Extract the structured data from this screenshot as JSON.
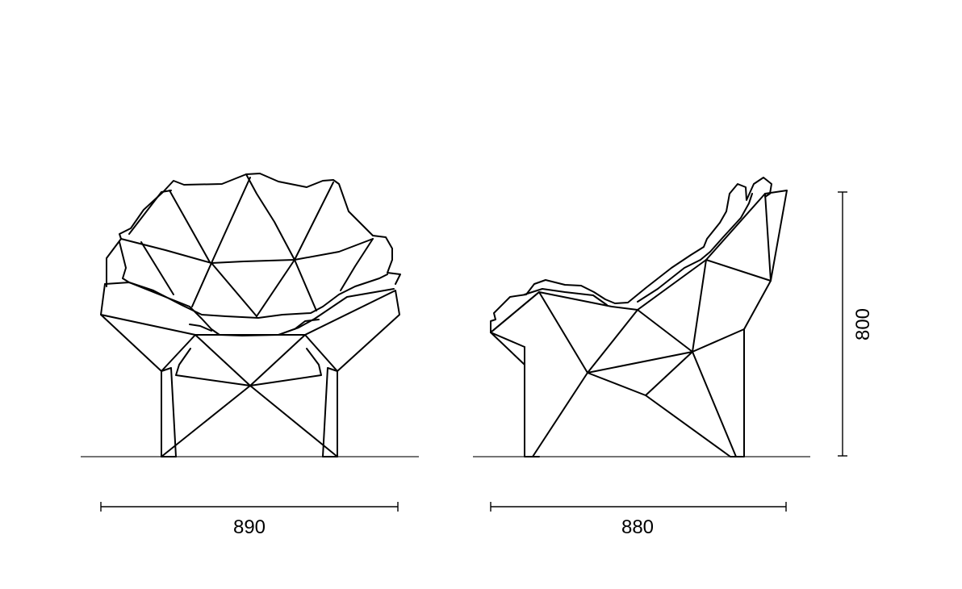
{
  "dimensions": {
    "front_width": "890",
    "side_depth": "880",
    "height": "800"
  }
}
